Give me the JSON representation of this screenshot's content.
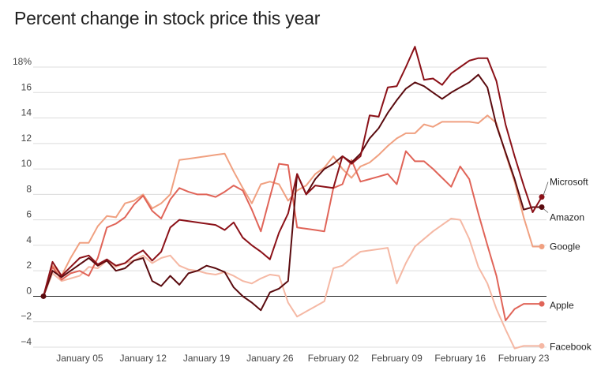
{
  "chart_data": {
    "type": "line",
    "title": "Percent change in stock price this year",
    "xlabel": "",
    "ylabel": "",
    "y_tick_values": [
      -4,
      -2,
      0,
      2,
      4,
      6,
      8,
      10,
      12,
      14,
      16,
      18
    ],
    "y_tick_labels": [
      "−4",
      "−2",
      "0",
      "2",
      "4",
      "6",
      "8",
      "10",
      "12",
      "14",
      "16",
      "18%"
    ],
    "ylim": [
      -4.6,
      19.5
    ],
    "x_tick_labels": [
      "January 05",
      "January 12",
      "January 19",
      "January 26",
      "February 02",
      "February 09",
      "February 16",
      "February 23"
    ],
    "x_tick_values": [
      "2018-01-05",
      "2018-01-12",
      "2018-01-19",
      "2018-01-26",
      "2018-02-02",
      "2018-02-09",
      "2018-02-16",
      "2018-02-23"
    ],
    "x": [
      "2018-01-01",
      "2018-01-02",
      "2018-01-03",
      "2018-01-04",
      "2018-01-05",
      "2018-01-06",
      "2018-01-07",
      "2018-01-08",
      "2018-01-09",
      "2018-01-10",
      "2018-01-11",
      "2018-01-12",
      "2018-01-13",
      "2018-01-14",
      "2018-01-15",
      "2018-01-16",
      "2018-01-17",
      "2018-01-18",
      "2018-01-19",
      "2018-01-20",
      "2018-01-21",
      "2018-01-22",
      "2018-01-23",
      "2018-01-24",
      "2018-01-25",
      "2018-01-26",
      "2018-01-27",
      "2018-01-28",
      "2018-01-29",
      "2018-01-30",
      "2018-01-31",
      "2018-02-01",
      "2018-02-02",
      "2018-02-03",
      "2018-02-04",
      "2018-02-05",
      "2018-02-06",
      "2018-02-07",
      "2018-02-08",
      "2018-02-09",
      "2018-02-10",
      "2018-02-11",
      "2018-02-12",
      "2018-02-13",
      "2018-02-14",
      "2018-02-15",
      "2018-02-16",
      "2018-02-17",
      "2018-02-18",
      "2018-02-19",
      "2018-02-20",
      "2018-02-21",
      "2018-02-22",
      "2018-02-23",
      "2018-02-24",
      "2018-02-25"
    ],
    "series": [
      {
        "name": "Microsoft",
        "color": "#8b1118",
        "label_value": 7.8,
        "end_value": 7.8,
        "values": [
          0,
          2.7,
          1.6,
          2.3,
          3.0,
          3.2,
          2.5,
          2.9,
          2.4,
          2.6,
          3.2,
          3.6,
          2.8,
          3.5,
          5.4,
          6.0,
          5.9,
          5.8,
          5.7,
          5.6,
          5.2,
          5.8,
          4.6,
          4.0,
          3.5,
          2.9,
          5.0,
          6.5,
          9.6,
          8.0,
          8.7,
          8.6,
          8.5,
          11.0,
          10.4,
          11.0,
          14.2,
          14.1,
          16.4,
          16.5,
          18.0,
          19.6,
          17.0,
          17.1,
          16.6,
          17.5,
          18.0,
          18.5,
          18.7,
          18.7,
          16.9,
          13.5,
          11.0,
          8.7,
          6.6,
          7.8
        ]
      },
      {
        "name": "Amazon",
        "color": "#5a0b0f",
        "label_value": 7.0,
        "end_value": 7.0,
        "values": [
          0,
          2.0,
          1.5,
          2.0,
          2.5,
          3.0,
          2.4,
          2.8,
          2.0,
          2.2,
          2.8,
          3.0,
          1.2,
          0.8,
          1.6,
          0.9,
          1.8,
          2.0,
          2.4,
          2.2,
          1.9,
          0.7,
          0.0,
          -0.5,
          -1.1,
          0.3,
          0.6,
          1.2,
          9.6,
          8.0,
          9.2,
          10.0,
          10.4,
          11.0,
          10.5,
          11.2,
          12.4,
          13.2,
          14.4,
          15.4,
          16.3,
          16.8,
          16.5,
          16.0,
          15.5,
          16.0,
          16.4,
          16.8,
          17.4,
          16.4,
          13.4,
          11.3,
          9.2,
          6.8,
          7.0,
          7.0
        ]
      },
      {
        "name": "Google",
        "color": "#f0a080",
        "label_value": 3.9,
        "end_value": 3.9,
        "values": [
          0,
          2.4,
          1.6,
          3.0,
          4.2,
          4.2,
          5.5,
          6.3,
          6.2,
          7.3,
          7.5,
          8.0,
          6.9,
          7.3,
          8.0,
          10.7,
          10.8,
          10.9,
          11.0,
          11.1,
          11.2,
          9.8,
          8.5,
          7.3,
          8.8,
          9.0,
          8.8,
          7.5,
          8.3,
          8.7,
          9.6,
          10.1,
          11.0,
          10.0,
          9.3,
          10.2,
          10.5,
          11.1,
          11.8,
          12.4,
          12.8,
          12.8,
          13.5,
          13.3,
          13.7,
          13.7,
          13.7,
          13.7,
          13.6,
          14.2,
          13.6,
          11.2,
          9.0,
          6.2,
          3.9,
          3.9
        ]
      },
      {
        "name": "Apple",
        "color": "#e06458",
        "label_value": -0.6,
        "end_value": -0.6,
        "values": [
          0,
          2.3,
          1.3,
          1.8,
          2.0,
          1.6,
          3.0,
          5.4,
          5.7,
          6.2,
          7.2,
          7.9,
          6.7,
          6.1,
          7.6,
          8.5,
          8.2,
          8.0,
          8.0,
          7.8,
          8.2,
          8.7,
          8.3,
          6.8,
          5.1,
          7.8,
          10.4,
          10.3,
          5.4,
          5.3,
          5.2,
          5.1,
          8.5,
          8.8,
          10.7,
          9.0,
          9.2,
          9.4,
          9.6,
          8.8,
          11.4,
          10.6,
          10.6,
          10.0,
          9.3,
          8.6,
          10.2,
          9.2,
          6.5,
          4.0,
          1.6,
          -1.9,
          -1.0,
          -0.6,
          -0.6,
          -0.6
        ]
      },
      {
        "name": "Facebook",
        "color": "#f5b8a4",
        "label_value": -3.9,
        "end_value": -3.9,
        "values": [
          0,
          1.8,
          1.2,
          1.4,
          1.6,
          2.3,
          2.2,
          2.8,
          2.3,
          2.6,
          2.8,
          3.2,
          2.6,
          3.0,
          3.2,
          2.4,
          2.1,
          2.0,
          1.8,
          1.7,
          1.9,
          1.6,
          1.2,
          1.0,
          1.4,
          1.7,
          1.6,
          -0.5,
          -1.6,
          -1.2,
          -0.8,
          -0.4,
          2.2,
          2.4,
          3.0,
          3.5,
          3.6,
          3.7,
          3.8,
          1.0,
          2.6,
          3.9,
          4.5,
          5.1,
          5.6,
          6.1,
          6.0,
          4.5,
          2.3,
          1.0,
          -1.0,
          -2.6,
          -4.1,
          -3.9,
          -3.9,
          -3.9
        ]
      }
    ],
    "grid": true,
    "legend": "inline labels at line ends (right)"
  }
}
